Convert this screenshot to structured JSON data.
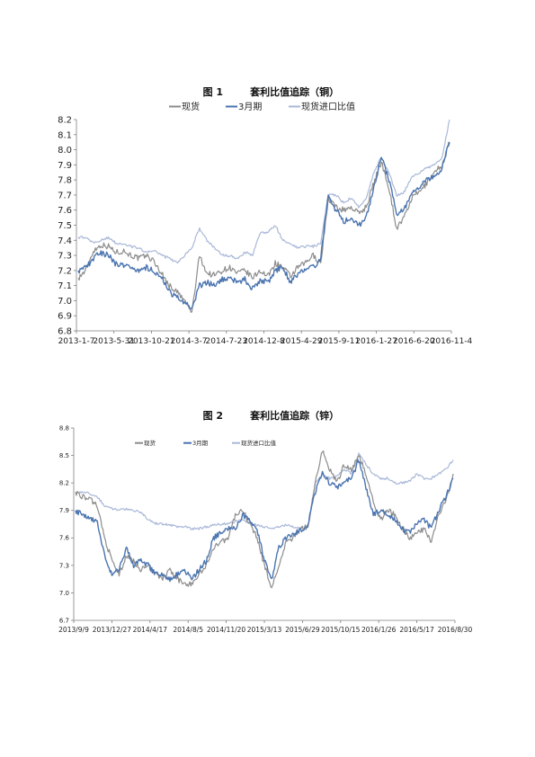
{
  "figures": [
    {
      "label": "图 1",
      "title": "套利比值追踪（铜）"
    },
    {
      "label": "图 2",
      "title": "套利比值追踪（锌）"
    }
  ],
  "chart_data": [
    {
      "type": "line",
      "title": "套利比值追踪（铜）",
      "legend_position": "top",
      "grid": false,
      "ylim": [
        6.8,
        8.2
      ],
      "y_ticks": [
        "6.8",
        "6.9",
        "7.0",
        "7.1",
        "7.2",
        "7.3",
        "7.4",
        "7.5",
        "7.6",
        "7.7",
        "7.8",
        "7.9",
        "8.0",
        "8.1",
        "8.2"
      ],
      "x_ticks": [
        "2013-1-7",
        "2013-5-31",
        "2013-10-21",
        "2014-3-7",
        "2014-7-23",
        "2014-12-8",
        "2015-4-29",
        "2015-9-11",
        "2016-1-27",
        "2016-6-20",
        "2016-11-4"
      ],
      "colors": {
        "现货": "#8c8c8c",
        "3月期": "#4a74b0",
        "现货进口比值": "#a9b8d8"
      },
      "series": [
        {
          "name": "现货",
          "values": [
            7.15,
            7.2,
            7.33,
            7.37,
            7.36,
            7.32,
            7.33,
            7.3,
            7.28,
            7.3,
            7.26,
            7.18,
            7.1,
            7.06,
            7.0,
            6.92,
            7.3,
            7.18,
            7.17,
            7.2,
            7.22,
            7.18,
            7.2,
            7.15,
            7.2,
            7.16,
            7.25,
            7.22,
            7.16,
            7.22,
            7.25,
            7.3,
            7.25,
            7.68,
            7.62,
            7.6,
            7.62,
            7.58,
            7.62,
            7.78,
            7.92,
            7.75,
            7.48,
            7.55,
            7.68,
            7.72,
            7.78,
            7.85,
            7.9,
            8.05
          ]
        },
        {
          "name": "3月期",
          "values": [
            7.2,
            7.22,
            7.28,
            7.32,
            7.3,
            7.24,
            7.24,
            7.22,
            7.2,
            7.22,
            7.2,
            7.15,
            7.06,
            7.02,
            6.98,
            6.95,
            7.1,
            7.12,
            7.1,
            7.14,
            7.15,
            7.12,
            7.14,
            7.08,
            7.14,
            7.12,
            7.2,
            7.22,
            7.12,
            7.18,
            7.2,
            7.22,
            7.28,
            7.7,
            7.6,
            7.52,
            7.55,
            7.5,
            7.55,
            7.75,
            7.95,
            7.8,
            7.58,
            7.6,
            7.7,
            7.75,
            7.8,
            7.82,
            7.88,
            8.05
          ]
        },
        {
          "name": "现货进口比值",
          "values": [
            7.42,
            7.42,
            7.38,
            7.4,
            7.42,
            7.38,
            7.38,
            7.36,
            7.35,
            7.32,
            7.33,
            7.3,
            7.28,
            7.25,
            7.3,
            7.35,
            7.48,
            7.4,
            7.35,
            7.3,
            7.3,
            7.28,
            7.32,
            7.3,
            7.45,
            7.45,
            7.5,
            7.4,
            7.38,
            7.35,
            7.36,
            7.36,
            7.38,
            7.7,
            7.7,
            7.65,
            7.68,
            7.62,
            7.68,
            7.85,
            7.95,
            7.85,
            7.7,
            7.72,
            7.82,
            7.85,
            7.88,
            7.9,
            7.95,
            8.2
          ]
        }
      ]
    },
    {
      "type": "line",
      "title": "套利比值追踪（锌）",
      "legend_position": "top",
      "grid": false,
      "ylim": [
        6.7,
        8.8
      ],
      "y_ticks": [
        "6.7",
        "7.0",
        "7.3",
        "7.6",
        "7.9",
        "8.2",
        "8.5",
        "8.8"
      ],
      "x_ticks": [
        "2013/9/9",
        "2013/12/27",
        "2014/4/17",
        "2014/8/5",
        "2014/11/20",
        "2015/3/13",
        "2015/6/29",
        "2015/10/15",
        "2016/1/26",
        "2016/5/17",
        "2016/8/30"
      ],
      "colors": {
        "现货": "#8c8c8c",
        "3月期": "#4a74b0",
        "现货进口比值": "#a9b8d8"
      },
      "series": [
        {
          "name": "现货",
          "values": [
            8.1,
            8.05,
            8.02,
            7.95,
            7.6,
            7.35,
            7.2,
            7.4,
            7.35,
            7.25,
            7.3,
            7.2,
            7.15,
            7.25,
            7.15,
            7.1,
            7.1,
            7.2,
            7.3,
            7.5,
            7.55,
            7.6,
            7.85,
            7.9,
            7.75,
            7.6,
            7.3,
            7.05,
            7.3,
            7.55,
            7.6,
            7.7,
            7.72,
            8.2,
            8.55,
            8.35,
            8.2,
            8.4,
            8.35,
            8.5,
            8.3,
            8.0,
            7.8,
            7.9,
            7.85,
            7.7,
            7.6,
            7.65,
            7.7,
            7.55,
            7.85,
            8.0,
            8.3
          ]
        },
        {
          "name": "3月期",
          "values": [
            7.9,
            7.85,
            7.82,
            7.78,
            7.4,
            7.2,
            7.25,
            7.5,
            7.3,
            7.35,
            7.3,
            7.2,
            7.2,
            7.15,
            7.2,
            7.25,
            7.15,
            7.25,
            7.35,
            7.6,
            7.65,
            7.7,
            7.7,
            7.85,
            7.8,
            7.7,
            7.35,
            7.15,
            7.5,
            7.6,
            7.65,
            7.68,
            7.75,
            8.1,
            8.3,
            8.2,
            8.15,
            8.2,
            8.25,
            8.45,
            8.15,
            7.85,
            7.9,
            7.85,
            7.8,
            7.7,
            7.65,
            7.75,
            7.8,
            7.7,
            7.9,
            8.05,
            8.25
          ]
        },
        {
          "name": "现货进口比值",
          "values": [
            8.1,
            8.1,
            8.08,
            8.05,
            7.95,
            7.92,
            7.9,
            7.92,
            7.9,
            7.88,
            7.8,
            7.76,
            7.75,
            7.74,
            7.72,
            7.72,
            7.7,
            7.7,
            7.72,
            7.74,
            7.75,
            7.76,
            7.78,
            7.8,
            7.76,
            7.74,
            7.72,
            7.7,
            7.72,
            7.74,
            7.72,
            7.7,
            7.72,
            8.2,
            8.3,
            8.25,
            8.28,
            8.35,
            8.3,
            8.52,
            8.4,
            8.3,
            8.25,
            8.25,
            8.2,
            8.2,
            8.22,
            8.3,
            8.25,
            8.25,
            8.3,
            8.35,
            8.45
          ]
        }
      ]
    }
  ]
}
